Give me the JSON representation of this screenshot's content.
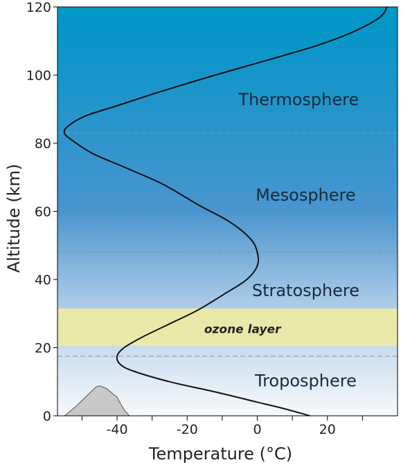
{
  "chart_data": {
    "type": "line",
    "title": "",
    "xlabel": "Temperature (°C)",
    "ylabel": "Altitude (km)",
    "xlim": [
      -57,
      40
    ],
    "ylim": [
      0,
      120
    ],
    "x_ticks": [
      -40,
      -20,
      0,
      20
    ],
    "x_tick_labels": [
      "-40",
      "-20",
      "0",
      "20"
    ],
    "y_ticks": [
      0,
      20,
      40,
      60,
      80,
      100,
      120
    ],
    "y_tick_labels": [
      "0",
      "20",
      "40",
      "60",
      "80",
      "100",
      "120"
    ],
    "grid": false,
    "series": [
      {
        "points": [
          [
            15,
            0
          ],
          [
            8,
            2
          ],
          [
            0,
            4
          ],
          [
            -12,
            7
          ],
          [
            -25,
            10
          ],
          [
            -35,
            13
          ],
          [
            -39,
            15
          ],
          [
            -40,
            17.5
          ],
          [
            -38,
            20
          ],
          [
            -33,
            23
          ],
          [
            -25,
            27
          ],
          [
            -17,
            31
          ],
          [
            -9,
            36
          ],
          [
            -3,
            40
          ],
          [
            0,
            44
          ],
          [
            0,
            48
          ],
          [
            -2,
            52
          ],
          [
            -8,
            57
          ],
          [
            -17,
            62
          ],
          [
            -27,
            68
          ],
          [
            -38,
            73
          ],
          [
            -47,
            77
          ],
          [
            -53,
            81
          ],
          [
            -55,
            83
          ],
          [
            -54,
            85
          ],
          [
            -49,
            88
          ],
          [
            -40,
            91
          ],
          [
            -28,
            95
          ],
          [
            -12,
            100
          ],
          [
            5,
            105
          ],
          [
            18,
            109
          ],
          [
            28,
            113
          ],
          [
            35,
            117
          ],
          [
            37,
            120
          ]
        ]
      }
    ],
    "layer_boundaries_km": [
      17.5,
      48,
      83
    ],
    "ozone_layer_km": [
      20.5,
      31.5
    ],
    "layers": [
      {
        "name": "Troposphere",
        "x": -2,
        "y": 10.5
      },
      {
        "name": "Stratosphere",
        "x": -2,
        "y": 37
      },
      {
        "name": "Mesosphere",
        "x": -2,
        "y": 65
      },
      {
        "name": "Thermosphere",
        "x": -4,
        "y": 93
      }
    ],
    "ozone_label": {
      "text": "ozone layer",
      "x": -23,
      "y": 25.5
    },
    "mountain": [
      [
        -55,
        0
      ],
      [
        -52,
        2.5
      ],
      [
        -50,
        4.5
      ],
      [
        -48,
        6.5
      ],
      [
        -46,
        8.5
      ],
      [
        -45,
        8.8
      ],
      [
        -43,
        8
      ],
      [
        -41,
        6.3
      ],
      [
        -40,
        5.5
      ],
      [
        -39,
        3.5
      ],
      [
        -38,
        1.8
      ],
      [
        -36.5,
        0
      ]
    ],
    "colors": {
      "sky_top": "#0098c8",
      "sky_mid": "#4a95cf",
      "sky_bottom": "#f7f9fb",
      "ozone": "#eae8a8",
      "mountain_fill": "#c8c8c8",
      "mountain_stroke": "#555555",
      "curve": "#111111",
      "boundary_line": "#7f95a8"
    }
  }
}
